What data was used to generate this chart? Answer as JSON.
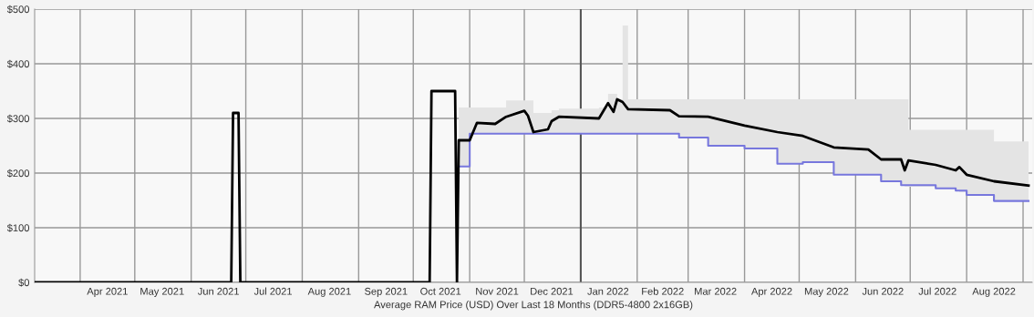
{
  "chart_data": {
    "type": "line",
    "xlabel": "Average RAM Price (USD) Over Last 18 Months (DDR5-4800 2x16GB)",
    "xlim": [
      "2021-03-07",
      "2022-09-06"
    ],
    "xticks": [
      {
        "value": "2021-04-01",
        "label": null
      },
      {
        "value": "2021-04-16",
        "label": "Apr 2021"
      },
      {
        "value": "2021-05-01",
        "label": null
      },
      {
        "value": "2021-05-16",
        "label": "May 2021"
      },
      {
        "value": "2021-06-01",
        "label": null
      },
      {
        "value": "2021-06-16",
        "label": "Jun 2021"
      },
      {
        "value": "2021-07-01",
        "label": null
      },
      {
        "value": "2021-07-16",
        "label": "Jul 2021"
      },
      {
        "value": "2021-08-01",
        "label": null
      },
      {
        "value": "2021-08-16",
        "label": "Aug 2021"
      },
      {
        "value": "2021-09-01",
        "label": null
      },
      {
        "value": "2021-09-16",
        "label": "Sep 2021"
      },
      {
        "value": "2021-10-01",
        "label": null
      },
      {
        "value": "2021-10-16",
        "label": "Oct 2021"
      },
      {
        "value": "2021-11-01",
        "label": null
      },
      {
        "value": "2021-11-16",
        "label": "Nov 2021"
      },
      {
        "value": "2021-12-01",
        "label": null
      },
      {
        "value": "2021-12-16",
        "label": "Dec 2021"
      },
      {
        "value": "2022-01-01",
        "label": null
      },
      {
        "value": "2022-01-16",
        "label": "Jan 2022"
      },
      {
        "value": "2022-02-01",
        "label": null
      },
      {
        "value": "2022-02-15",
        "label": "Feb 2022"
      },
      {
        "value": "2022-03-01",
        "label": null
      },
      {
        "value": "2022-03-16",
        "label": "Mar 2022"
      },
      {
        "value": "2022-04-01",
        "label": null
      },
      {
        "value": "2022-04-16",
        "label": "Apr 2022"
      },
      {
        "value": "2022-05-01",
        "label": null
      },
      {
        "value": "2022-05-16",
        "label": "May 2022"
      },
      {
        "value": "2022-06-01",
        "label": null
      },
      {
        "value": "2022-06-16",
        "label": "Jun 2022"
      },
      {
        "value": "2022-07-01",
        "label": null
      },
      {
        "value": "2022-07-16",
        "label": "Jul 2022"
      },
      {
        "value": "2022-08-01",
        "label": null
      },
      {
        "value": "2022-08-16",
        "label": "Aug 2022"
      },
      {
        "value": "2022-09-01",
        "label": null
      }
    ],
    "ylim": [
      0,
      500
    ],
    "yticks": [
      {
        "value": 0,
        "label": "$0"
      },
      {
        "value": 100,
        "label": "$100"
      },
      {
        "value": 200,
        "label": "$200"
      },
      {
        "value": 300,
        "label": "$300"
      },
      {
        "value": 400,
        "label": "$400"
      },
      {
        "value": 500,
        "label": "$500"
      }
    ],
    "grid": true,
    "ref_lines": [
      {
        "axis": "x",
        "value": "2022-01-01",
        "color": "#555555"
      }
    ],
    "series": [
      {
        "type": "step",
        "color": "#7777dd",
        "x": [
          "2021-10-26",
          "2021-11-01",
          "2022-02-24",
          "2022-03-12",
          "2022-04-01",
          "2022-04-19",
          "2022-05-03",
          "2022-05-20",
          "2022-06-15",
          "2022-06-26",
          "2022-07-15",
          "2022-07-26",
          "2022-08-01",
          "2022-08-16",
          "2022-09-04"
        ],
        "values": [
          212,
          272,
          265,
          250,
          245,
          217,
          220,
          197,
          185,
          178,
          172,
          168,
          160,
          149,
          149
        ]
      },
      {
        "color": "#000000",
        "x": [
          "2021-03-07",
          "2021-06-23",
          "2021-06-24",
          "2021-06-27",
          "2021-06-28",
          "2021-10-10",
          "2021-10-11",
          "2021-10-24",
          "2021-10-25",
          "2021-10-26",
          "2021-11-01",
          "2021-11-05",
          "2021-11-15",
          "2021-11-21",
          "2021-12-01",
          "2021-12-03",
          "2021-12-06",
          "2021-12-14",
          "2021-12-16",
          "2021-12-20",
          "2022-01-11",
          "2022-01-16",
          "2022-01-19",
          "2022-01-21",
          "2022-01-24",
          "2022-01-27",
          "2022-02-19",
          "2022-02-24",
          "2022-03-12",
          "2022-04-01",
          "2022-04-19",
          "2022-05-03",
          "2022-05-20",
          "2022-06-08",
          "2022-06-15",
          "2022-06-26",
          "2022-06-28",
          "2022-06-30",
          "2022-07-15",
          "2022-07-26",
          "2022-07-28",
          "2022-08-01",
          "2022-08-16",
          "2022-09-04"
        ],
        "values": [
          0,
          0,
          310,
          310,
          0,
          0,
          350,
          350,
          0,
          260,
          260,
          292,
          290,
          303,
          314,
          305,
          275,
          280,
          295,
          303,
          300,
          328,
          312,
          335,
          330,
          317,
          315,
          304,
          303,
          287,
          275,
          268,
          247,
          243,
          225,
          225,
          205,
          223,
          215,
          205,
          211,
          197,
          185,
          177
        ],
        "lower": [
          null,
          null,
          null,
          null,
          null,
          null,
          null,
          null,
          null,
          212,
          272,
          272,
          272,
          272,
          272,
          272,
          272,
          272,
          272,
          272,
          272,
          272,
          272,
          272,
          272,
          272,
          272,
          265,
          250,
          245,
          217,
          220,
          197,
          197,
          185,
          178,
          175,
          175,
          172,
          168,
          165,
          160,
          149,
          149
        ],
        "upper": [
          null,
          null,
          null,
          null,
          null,
          null,
          null,
          null,
          null,
          320,
          320,
          320,
          320,
          333,
          333,
          333,
          310,
          310,
          315,
          318,
          320,
          345,
          345,
          335,
          470,
          335,
          335,
          335,
          335,
          335,
          335,
          335,
          335,
          335,
          335,
          335,
          335,
          279,
          279,
          279,
          279,
          279,
          258,
          258
        ]
      }
    ]
  }
}
